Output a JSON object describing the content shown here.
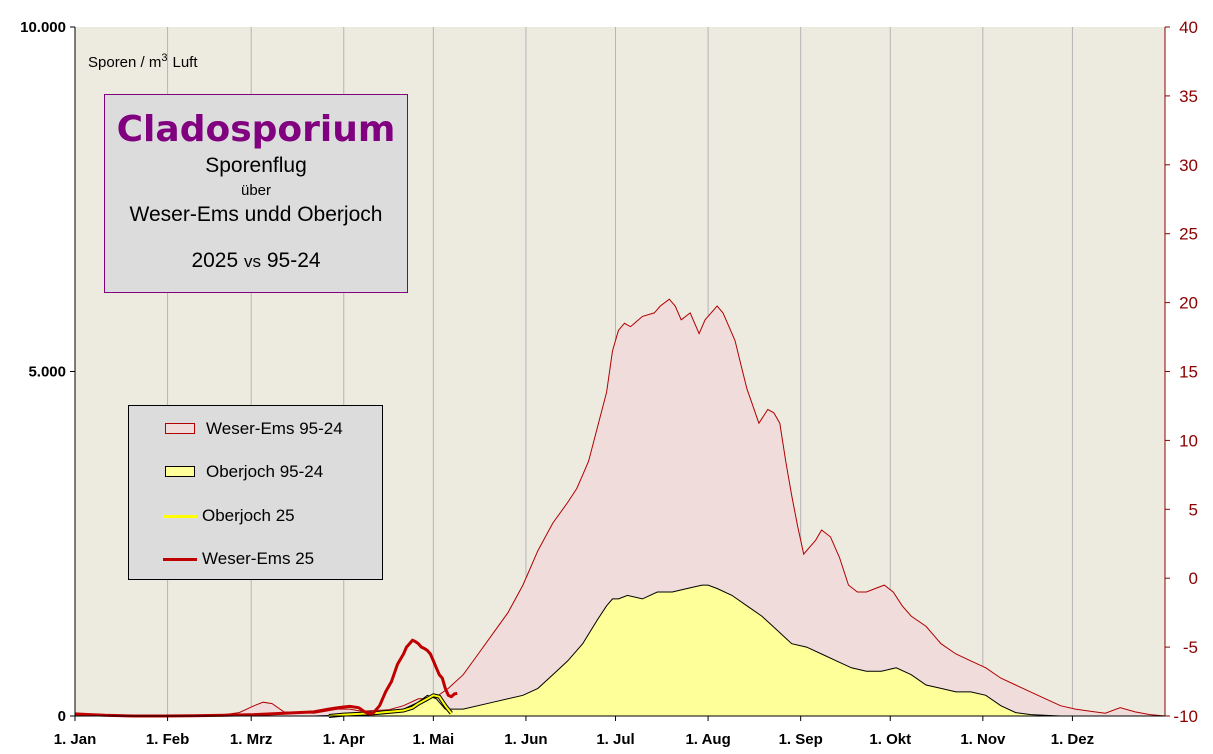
{
  "chart_data": {
    "type": "area",
    "y_left_unit_prefix": "Sporen / m",
    "y_left_unit_sup": "3",
    "y_left_unit_suffix": "Luft",
    "y_left_ticks": [
      "10.000",
      "5.000",
      "0"
    ],
    "ylim_left": [
      0,
      10000
    ],
    "y_right_ticks": [
      "40",
      "35",
      "30",
      "25",
      "20",
      "15",
      "10",
      "5",
      "0",
      "-5",
      "-10"
    ],
    "ylim_right": [
      -10,
      40
    ],
    "x_ticks": [
      "1. Jan",
      "1. Feb",
      "1. Mrz",
      "1. Apr",
      "1. Mai",
      "1. Jun",
      "1. Jul",
      "1. Aug",
      "1. Sep",
      "1. Okt",
      "1. Nov",
      "1. Dez"
    ],
    "x_tick_days": [
      0,
      31,
      59,
      90,
      120,
      151,
      181,
      212,
      243,
      273,
      304,
      334
    ],
    "x_range_days": [
      0,
      365
    ],
    "grid": "vertical",
    "background": "#edebe0",
    "series": [
      {
        "name": "Weser-Ems 95-24",
        "kind": "area",
        "fill": "#f1dcdc",
        "stroke": "#b00000",
        "x": [
          0,
          10,
          20,
          30,
          40,
          50,
          55,
          60,
          63,
          66,
          70,
          80,
          88,
          92,
          96,
          105,
          110,
          115,
          120,
          125,
          130,
          135,
          140,
          145,
          150,
          155,
          160,
          165,
          168,
          170,
          172,
          175,
          178,
          180,
          182,
          184,
          186,
          190,
          194,
          196,
          199,
          201,
          203,
          206,
          209,
          211,
          213,
          215,
          217,
          219,
          221,
          223,
          225,
          227,
          229,
          232,
          234,
          236,
          238,
          240,
          242,
          244,
          246,
          248,
          250,
          253,
          256,
          259,
          262,
          265,
          268,
          271,
          274,
          277,
          280,
          285,
          290,
          295,
          300,
          305,
          310,
          315,
          320,
          325,
          330,
          335,
          340,
          345,
          350,
          355,
          360,
          365
        ],
        "y": [
          0,
          0,
          0,
          0,
          0,
          20,
          50,
          150,
          200,
          180,
          60,
          40,
          100,
          100,
          70,
          90,
          150,
          250,
          250,
          400,
          600,
          900,
          1200,
          1500,
          1900,
          2400,
          2800,
          3100,
          3300,
          3500,
          3700,
          4200,
          4700,
          5300,
          5600,
          5700,
          5650,
          5800,
          5850,
          5950,
          6050,
          5950,
          5750,
          5850,
          5550,
          5750,
          5850,
          5950,
          5850,
          5650,
          5450,
          5100,
          4750,
          4500,
          4250,
          4450,
          4400,
          4250,
          3700,
          3200,
          2750,
          2350,
          2450,
          2550,
          2700,
          2600,
          2300,
          1900,
          1800,
          1800,
          1850,
          1900,
          1800,
          1600,
          1450,
          1300,
          1050,
          900,
          800,
          700,
          550,
          450,
          350,
          250,
          150,
          100,
          70,
          40,
          120,
          60,
          20,
          0
        ]
      },
      {
        "name": "Oberjoch 95-24",
        "kind": "area",
        "fill": "#ffff99",
        "stroke": "#000000",
        "x": [
          0,
          60,
          80,
          95,
          105,
          110,
          115,
          118,
          121,
          124,
          130,
          140,
          150,
          155,
          160,
          165,
          170,
          175,
          178,
          180,
          182,
          185,
          190,
          195,
          200,
          205,
          210,
          212,
          215,
          220,
          225,
          230,
          235,
          240,
          245,
          250,
          255,
          260,
          265,
          270,
          275,
          280,
          285,
          290,
          295,
          300,
          305,
          310,
          315,
          320,
          330,
          340,
          365
        ],
        "y": [
          0,
          0,
          0,
          20,
          60,
          100,
          200,
          300,
          250,
          100,
          100,
          200,
          300,
          400,
          600,
          800,
          1050,
          1400,
          1600,
          1700,
          1700,
          1750,
          1700,
          1800,
          1800,
          1850,
          1900,
          1900,
          1850,
          1750,
          1600,
          1450,
          1250,
          1050,
          1000,
          900,
          800,
          700,
          650,
          650,
          700,
          600,
          450,
          400,
          350,
          350,
          300,
          150,
          50,
          20,
          0,
          0,
          0
        ]
      },
      {
        "name": "Oberjoch 25",
        "kind": "line",
        "stroke": "#ffff00",
        "width": 2,
        "x": [
          85,
          90,
          95,
          100,
          105,
          110,
          113,
          115,
          118,
          120,
          122,
          124,
          126
        ],
        "y": [
          0,
          20,
          30,
          40,
          60,
          80,
          120,
          180,
          250,
          300,
          280,
          150,
          40
        ]
      },
      {
        "name": "Weser-Ems 25",
        "kind": "line",
        "stroke": "#c00000",
        "width": 3,
        "x": [
          0,
          5,
          10,
          20,
          30,
          40,
          50,
          60,
          70,
          80,
          85,
          88,
          90,
          92,
          95,
          97,
          99,
          100,
          102,
          104,
          106,
          108,
          110,
          111,
          112,
          113,
          114,
          115,
          116,
          117,
          118,
          119,
          120,
          121,
          122,
          123,
          124,
          125,
          126,
          127,
          128
        ],
        "y": [
          30,
          20,
          10,
          0,
          0,
          5,
          10,
          20,
          40,
          60,
          100,
          120,
          130,
          140,
          120,
          60,
          30,
          50,
          150,
          350,
          500,
          750,
          900,
          1000,
          1050,
          1100,
          1080,
          1050,
          1000,
          980,
          950,
          900,
          800,
          700,
          600,
          550,
          400,
          300,
          280,
          320,
          330
        ]
      }
    ]
  },
  "title_box": {
    "title": "Cladosporium",
    "line1": "Sporenflug",
    "line2": "über",
    "line3": "Weser-Ems undd  Oberjoch",
    "line4_year": "2025",
    "line4_vs": "vs",
    "line4_ref": "95-24"
  },
  "legend": {
    "items": [
      {
        "label": "Weser-Ems 95-24",
        "type": "box",
        "fill": "#f1dcdc",
        "stroke": "#b00000"
      },
      {
        "label": "Oberjoch 95-24",
        "type": "box",
        "fill": "#ffff99",
        "stroke": "#000000"
      },
      {
        "label": "Oberjoch 25",
        "type": "line",
        "stroke": "#ffff00"
      },
      {
        "label": "Weser-Ems 25",
        "type": "line",
        "stroke": "#c00000"
      }
    ]
  }
}
